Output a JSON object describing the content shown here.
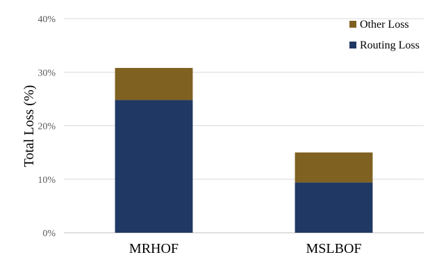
{
  "chart_data": {
    "type": "bar",
    "stacked": true,
    "categories": [
      "MRHOF",
      "MSLBOF"
    ],
    "series": [
      {
        "name": "Routing Loss",
        "values": [
          24.8,
          9.4
        ],
        "color": "#1f3864"
      },
      {
        "name": "Other Loss",
        "values": [
          6.0,
          5.6
        ],
        "color": "#7f6121"
      }
    ],
    "ylabel": "Total Loss (%)",
    "xlabel": "",
    "ylim": [
      0,
      40
    ],
    "yticks": [
      0,
      10,
      20,
      30,
      40
    ],
    "ytick_labels": [
      "0%",
      "10%",
      "20%",
      "30%",
      "40%"
    ],
    "grid": true,
    "legend": [
      "Other Loss",
      "Routing Loss"
    ],
    "legend_position": "top-right"
  }
}
